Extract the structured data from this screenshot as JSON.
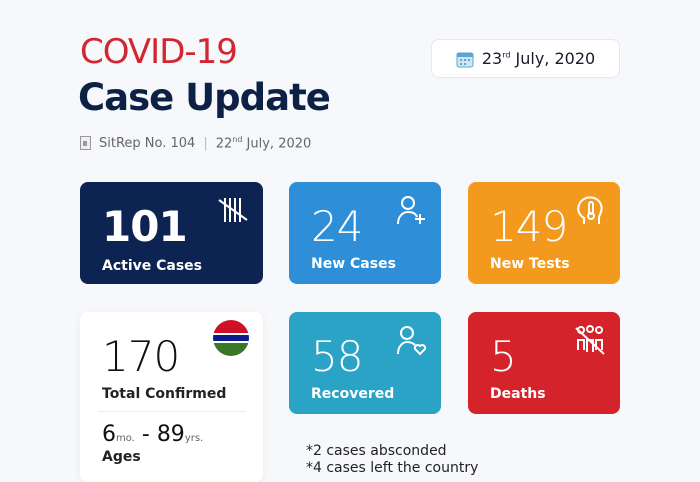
{
  "header": {
    "title_line1": "COVID-19",
    "title_line2": "Case Update",
    "sitrep": "SitRep No. 104",
    "sitrep_date_day": "22",
    "sitrep_date_suffix": "nd",
    "sitrep_date_rest": " July, 2020",
    "date_day": "23",
    "date_suffix": "rd",
    "date_rest": " July, 2020"
  },
  "cards": [
    {
      "value": "101",
      "label": "Active Cases",
      "color": "#0d2452",
      "icon": "tally-icon"
    },
    {
      "value": "24",
      "label": "New Cases",
      "color": "#2e8fd8",
      "icon": "add-user-icon"
    },
    {
      "value": "149",
      "label": "New Tests",
      "color": "#f39a1e",
      "icon": "head-thermometer-icon"
    },
    {
      "value": "170",
      "label": "Total Confirmed",
      "color": "#ffffff",
      "icon": "gambia-flag-icon"
    },
    {
      "value": "58",
      "label": "Recovered",
      "color": "#2ba3c6",
      "icon": "user-heart-icon"
    },
    {
      "value": "5",
      "label": "Deaths",
      "color": "#d4232a",
      "icon": "people-crossed-icon"
    }
  ],
  "ages": {
    "min": "6",
    "min_unit": "mo.",
    "sep": " - ",
    "max": "89",
    "max_unit": "yrs.",
    "label": "Ages"
  },
  "notes": [
    "*2 cases absconded",
    "*4 cases left the country"
  ]
}
